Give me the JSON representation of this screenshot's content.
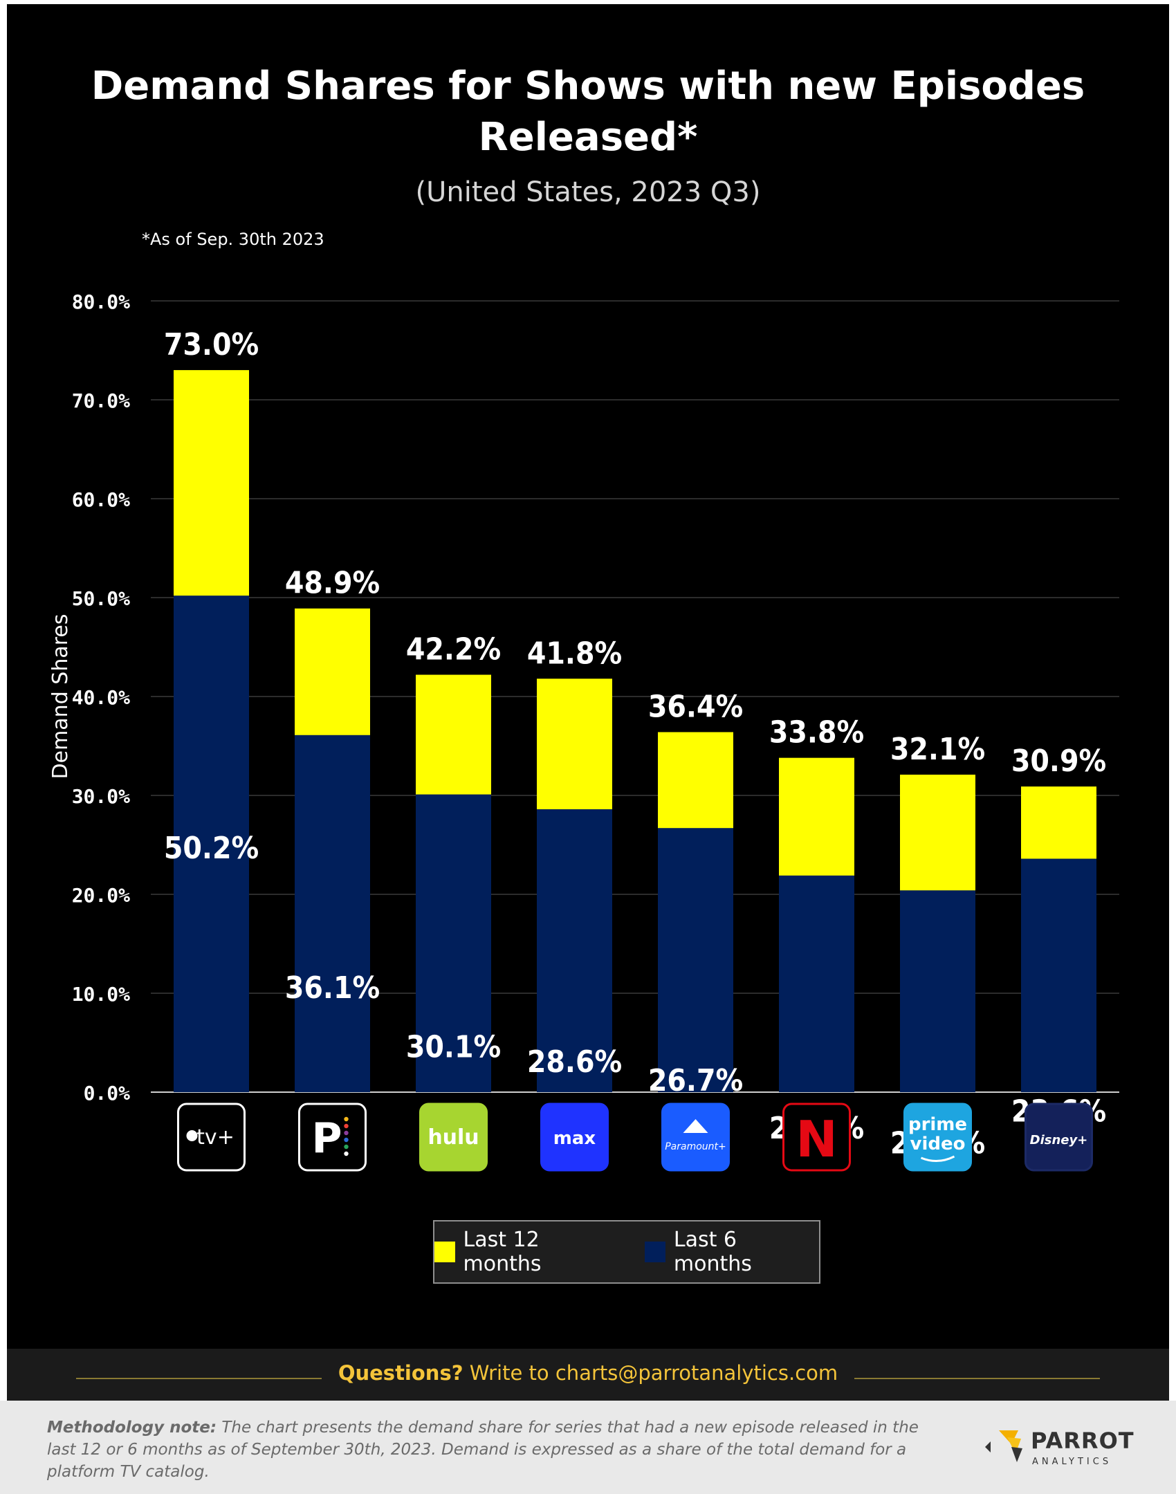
{
  "title": "Demand Shares for Shows with new Episodes Released*",
  "subtitle": "(United States, 2023 Q3)",
  "note": "*As of Sep. 30th 2023",
  "chart_data": {
    "type": "bar",
    "stacked": false,
    "ylabel": "Demand Shares",
    "ylim": [
      0,
      80
    ],
    "yticks": [
      "0.0%",
      "10.0%",
      "20.0%",
      "30.0%",
      "40.0%",
      "50.0%",
      "60.0%",
      "70.0%",
      "80.0%"
    ],
    "categories": [
      "Apple TV+",
      "Peacock",
      "Hulu",
      "Max",
      "Paramount+",
      "Netflix",
      "Prime Video",
      "Disney+"
    ],
    "category_logo_text": [
      "tv+",
      "P",
      "hulu",
      "max",
      "Paramount+",
      "N",
      "prime video",
      "Disney+"
    ],
    "series": [
      {
        "name": "Last 12 months",
        "color": "#ffff00",
        "values": [
          73.0,
          48.9,
          42.2,
          41.8,
          36.4,
          33.8,
          32.1,
          30.9
        ],
        "labels": [
          "73.0%",
          "48.9%",
          "42.2%",
          "41.8%",
          "36.4%",
          "33.8%",
          "32.1%",
          "30.9%"
        ]
      },
      {
        "name": "Last 6 months",
        "color": "#011f5b",
        "values": [
          50.2,
          36.1,
          30.1,
          28.6,
          26.7,
          21.9,
          20.4,
          23.6
        ],
        "labels": [
          "50.2%",
          "36.1%",
          "30.1%",
          "28.6%",
          "26.7%",
          "21.9%",
          "20.4%",
          "23.6%"
        ]
      }
    ],
    "grid": true,
    "legend_position": "bottom-center",
    "logo_colors": [
      "#ffffff",
      "#ffffff",
      "#a7d530",
      "#1f33ff",
      "#1a5cff",
      "#e50914",
      "#1ea5e0",
      "#1c2a66"
    ]
  },
  "legend": {
    "item_12": "Last 12 months",
    "item_6": "Last 6 months"
  },
  "footer": {
    "questions_bold": "Questions?",
    "questions_rest": " Write to charts@parrotanalytics.com",
    "method_bold": "Methodology note:",
    "method_text": " The chart presents the demand share for series that had a new episode released in the last 12 or 6 months as of September 30th, 2023. Demand is expressed as a share of the total demand for a platform TV catalog.",
    "logo_name": "PARROT",
    "logo_sub": "ANALYTICS"
  }
}
